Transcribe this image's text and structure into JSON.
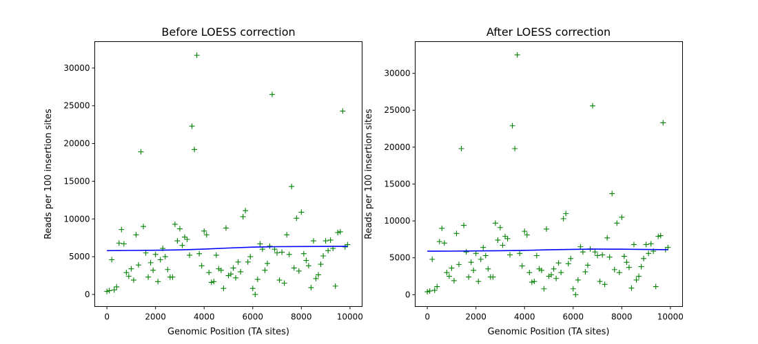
{
  "chart_data": [
    {
      "type": "scatter",
      "title": "Before LOESS correction",
      "xlabel": "Genomic Position (TA sites)",
      "ylabel": "Reads per 100 insertion sites",
      "xlim": [
        -500,
        10500
      ],
      "ylim": [
        -1600,
        33500
      ],
      "xticks": [
        0,
        2000,
        4000,
        6000,
        8000,
        10000
      ],
      "yticks": [
        0,
        5000,
        10000,
        15000,
        20000,
        25000,
        30000
      ],
      "grid": false,
      "series": [
        {
          "kind": "markers",
          "marker": "+",
          "color": "#008000",
          "points": [
            [
              0,
              400
            ],
            [
              100,
              500
            ],
            [
              200,
              4600
            ],
            [
              300,
              600
            ],
            [
              400,
              1000
            ],
            [
              500,
              6800
            ],
            [
              600,
              8600
            ],
            [
              700,
              6700
            ],
            [
              800,
              2900
            ],
            [
              900,
              2400
            ],
            [
              1000,
              3400
            ],
            [
              1100,
              1900
            ],
            [
              1200,
              7900
            ],
            [
              1300,
              3900
            ],
            [
              1400,
              18900
            ],
            [
              1500,
              9000
            ],
            [
              1600,
              5500
            ],
            [
              1700,
              2300
            ],
            [
              1800,
              4200
            ],
            [
              1900,
              3200
            ],
            [
              2000,
              5300
            ],
            [
              2100,
              1700
            ],
            [
              2200,
              4600
            ],
            [
              2300,
              6100
            ],
            [
              2400,
              5000
            ],
            [
              2500,
              3300
            ],
            [
              2600,
              2300
            ],
            [
              2700,
              2300
            ],
            [
              2800,
              9300
            ],
            [
              2900,
              7100
            ],
            [
              3000,
              8700
            ],
            [
              3100,
              6500
            ],
            [
              3200,
              7600
            ],
            [
              3300,
              7300
            ],
            [
              3400,
              5200
            ],
            [
              3500,
              22300
            ],
            [
              3600,
              19200
            ],
            [
              3700,
              31700
            ],
            [
              3800,
              5400
            ],
            [
              3900,
              3800
            ],
            [
              4000,
              8400
            ],
            [
              4100,
              7900
            ],
            [
              4200,
              2900
            ],
            [
              4300,
              1600
            ],
            [
              4400,
              1700
            ],
            [
              4500,
              5200
            ],
            [
              4600,
              3400
            ],
            [
              4700,
              3200
            ],
            [
              4800,
              800
            ],
            [
              4900,
              8800
            ],
            [
              5000,
              2500
            ],
            [
              5100,
              2700
            ],
            [
              5200,
              3500
            ],
            [
              5300,
              2200
            ],
            [
              5400,
              4300
            ],
            [
              5500,
              3000
            ],
            [
              5600,
              10300
            ],
            [
              5700,
              11100
            ],
            [
              5800,
              4300
            ],
            [
              5900,
              5000
            ],
            [
              6000,
              800
            ],
            [
              6100,
              0
            ],
            [
              6200,
              2000
            ],
            [
              6300,
              6700
            ],
            [
              6400,
              6000
            ],
            [
              6500,
              3200
            ],
            [
              6600,
              4100
            ],
            [
              6700,
              6400
            ],
            [
              6800,
              26500
            ],
            [
              6900,
              6000
            ],
            [
              7000,
              5500
            ],
            [
              7100,
              1900
            ],
            [
              7200,
              5600
            ],
            [
              7300,
              1500
            ],
            [
              7400,
              7900
            ],
            [
              7500,
              5300
            ],
            [
              7600,
              14300
            ],
            [
              7700,
              3500
            ],
            [
              7800,
              10100
            ],
            [
              7900,
              3100
            ],
            [
              8000,
              10900
            ],
            [
              8100,
              5400
            ],
            [
              8200,
              4500
            ],
            [
              8300,
              3800
            ],
            [
              8400,
              900
            ],
            [
              8500,
              7100
            ],
            [
              8600,
              2100
            ],
            [
              8700,
              2600
            ],
            [
              8800,
              4000
            ],
            [
              8900,
              5100
            ],
            [
              9000,
              7100
            ],
            [
              9100,
              5800
            ],
            [
              9200,
              7200
            ],
            [
              9300,
              6100
            ],
            [
              9400,
              1100
            ],
            [
              9500,
              8200
            ],
            [
              9600,
              8300
            ],
            [
              9700,
              24300
            ],
            [
              9800,
              6300
            ],
            [
              9900,
              6600
            ]
          ]
        },
        {
          "kind": "line",
          "color": "#0000ff",
          "points": [
            [
              0,
              5800
            ],
            [
              1000,
              5830
            ],
            [
              2000,
              5860
            ],
            [
              3000,
              5900
            ],
            [
              4000,
              6000
            ],
            [
              5000,
              6150
            ],
            [
              6000,
              6270
            ],
            [
              7000,
              6330
            ],
            [
              8000,
              6350
            ],
            [
              9000,
              6360
            ],
            [
              9900,
              6370
            ]
          ]
        }
      ]
    },
    {
      "type": "scatter",
      "title": "After LOESS correction",
      "xlabel": "Genomic Position (TA sites)",
      "ylabel": "Reads per 100 insertion sites",
      "xlim": [
        -500,
        10500
      ],
      "ylim": [
        -1600,
        34300
      ],
      "xticks": [
        0,
        2000,
        4000,
        6000,
        8000,
        10000
      ],
      "yticks": [
        0,
        5000,
        10000,
        15000,
        20000,
        25000,
        30000
      ],
      "grid": false,
      "series": [
        {
          "kind": "markers",
          "marker": "+",
          "color": "#008000",
          "points": [
            [
              0,
              400
            ],
            [
              100,
              500
            ],
            [
              200,
              4800
            ],
            [
              300,
              600
            ],
            [
              400,
              1100
            ],
            [
              500,
              7200
            ],
            [
              600,
              9000
            ],
            [
              700,
              7000
            ],
            [
              800,
              3000
            ],
            [
              900,
              2500
            ],
            [
              1000,
              3600
            ],
            [
              1100,
              1900
            ],
            [
              1200,
              8300
            ],
            [
              1300,
              4100
            ],
            [
              1400,
              19800
            ],
            [
              1500,
              9400
            ],
            [
              1600,
              5800
            ],
            [
              1700,
              2400
            ],
            [
              1800,
              4400
            ],
            [
              1900,
              3300
            ],
            [
              2000,
              5600
            ],
            [
              2100,
              1800
            ],
            [
              2200,
              4800
            ],
            [
              2300,
              6400
            ],
            [
              2400,
              5300
            ],
            [
              2500,
              3500
            ],
            [
              2600,
              2400
            ],
            [
              2700,
              2400
            ],
            [
              2800,
              9700
            ],
            [
              2900,
              7400
            ],
            [
              3000,
              9100
            ],
            [
              3100,
              6700
            ],
            [
              3200,
              7900
            ],
            [
              3300,
              7600
            ],
            [
              3400,
              5400
            ],
            [
              3500,
              22900
            ],
            [
              3600,
              19800
            ],
            [
              3700,
              32500
            ],
            [
              3800,
              5600
            ],
            [
              3900,
              3900
            ],
            [
              4000,
              8600
            ],
            [
              4100,
              8100
            ],
            [
              4200,
              3000
            ],
            [
              4300,
              1700
            ],
            [
              4400,
              1800
            ],
            [
              4500,
              5300
            ],
            [
              4600,
              3500
            ],
            [
              4700,
              3300
            ],
            [
              4800,
              800
            ],
            [
              4900,
              8900
            ],
            [
              5000,
              2500
            ],
            [
              5100,
              2700
            ],
            [
              5200,
              3500
            ],
            [
              5300,
              2200
            ],
            [
              5400,
              4300
            ],
            [
              5500,
              3000
            ],
            [
              5600,
              10300
            ],
            [
              5700,
              11000
            ],
            [
              5800,
              4200
            ],
            [
              5900,
              4900
            ],
            [
              6000,
              800
            ],
            [
              6100,
              0
            ],
            [
              6200,
              2000
            ],
            [
              6300,
              6500
            ],
            [
              6400,
              5800
            ],
            [
              6500,
              3100
            ],
            [
              6600,
              4000
            ],
            [
              6700,
              6200
            ],
            [
              6800,
              25600
            ],
            [
              6900,
              5800
            ],
            [
              7000,
              5300
            ],
            [
              7100,
              1800
            ],
            [
              7200,
              5400
            ],
            [
              7300,
              1400
            ],
            [
              7400,
              7700
            ],
            [
              7500,
              5100
            ],
            [
              7600,
              13700
            ],
            [
              7700,
              3400
            ],
            [
              7800,
              9700
            ],
            [
              7900,
              3000
            ],
            [
              8000,
              10500
            ],
            [
              8100,
              5200
            ],
            [
              8200,
              4400
            ],
            [
              8300,
              3700
            ],
            [
              8400,
              900
            ],
            [
              8500,
              6800
            ],
            [
              8600,
              2000
            ],
            [
              8700,
              2500
            ],
            [
              8800,
              3800
            ],
            [
              8900,
              4900
            ],
            [
              9000,
              6800
            ],
            [
              9100,
              5600
            ],
            [
              9200,
              6900
            ],
            [
              9300,
              5900
            ],
            [
              9400,
              1100
            ],
            [
              9500,
              7900
            ],
            [
              9600,
              8000
            ],
            [
              9700,
              23300
            ],
            [
              9800,
              6100
            ],
            [
              9900,
              6400
            ]
          ]
        },
        {
          "kind": "line",
          "color": "#0000ff",
          "points": [
            [
              0,
              5900
            ],
            [
              1000,
              5910
            ],
            [
              2000,
              5930
            ],
            [
              3000,
              5960
            ],
            [
              4000,
              6010
            ],
            [
              5000,
              6080
            ],
            [
              6000,
              6150
            ],
            [
              7000,
              6180
            ],
            [
              8000,
              6170
            ],
            [
              9000,
              6130
            ],
            [
              9900,
              6100
            ]
          ]
        }
      ]
    }
  ]
}
